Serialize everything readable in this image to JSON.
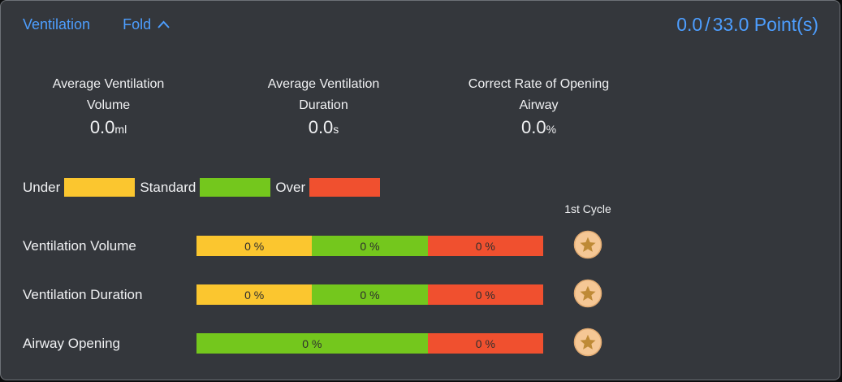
{
  "colors": {
    "accent": "#4d9eff",
    "under": "#fbc62f",
    "standard": "#74c71d",
    "over": "#f0502f",
    "star_fill": "#f5c795",
    "star_ring": "#e2ab72",
    "star_glyph": "#be8a36"
  },
  "header": {
    "title": "Ventilation",
    "fold_label": "Fold",
    "score_current": "0.0",
    "score_separator": "/",
    "score_total": "33.0",
    "score_unit": "Point(s)"
  },
  "stats": [
    {
      "line1": "Average Ventilation",
      "line2": "Volume",
      "value": "0.0",
      "unit": "ml"
    },
    {
      "line1": "Average Ventilation",
      "line2": "Duration",
      "value": "0.0",
      "unit": "s"
    },
    {
      "line1": "Correct Rate of Opening",
      "line2": "Airway",
      "value": "0.0",
      "unit": "%"
    }
  ],
  "legend": [
    {
      "label": "Under",
      "color_key": "under"
    },
    {
      "label": "Standard",
      "color_key": "standard"
    },
    {
      "label": "Over",
      "color_key": "over"
    }
  ],
  "cycle_header": "1st Cycle",
  "rows": [
    {
      "label": "Ventilation Volume",
      "segments": [
        {
          "text": "0 %",
          "color_key": "under",
          "span": 1
        },
        {
          "text": "0 %",
          "color_key": "standard",
          "span": 1
        },
        {
          "text": "0 %",
          "color_key": "over",
          "span": 1
        }
      ],
      "star": true
    },
    {
      "label": "Ventilation Duration",
      "segments": [
        {
          "text": "0 %",
          "color_key": "under",
          "span": 1
        },
        {
          "text": "0 %",
          "color_key": "standard",
          "span": 1
        },
        {
          "text": "0 %",
          "color_key": "over",
          "span": 1
        }
      ],
      "star": true
    },
    {
      "label": "Airway Opening",
      "segments": [
        {
          "text": "0 %",
          "color_key": "standard",
          "span": 2
        },
        {
          "text": "0 %",
          "color_key": "over",
          "span": 1
        }
      ],
      "star": true
    }
  ]
}
